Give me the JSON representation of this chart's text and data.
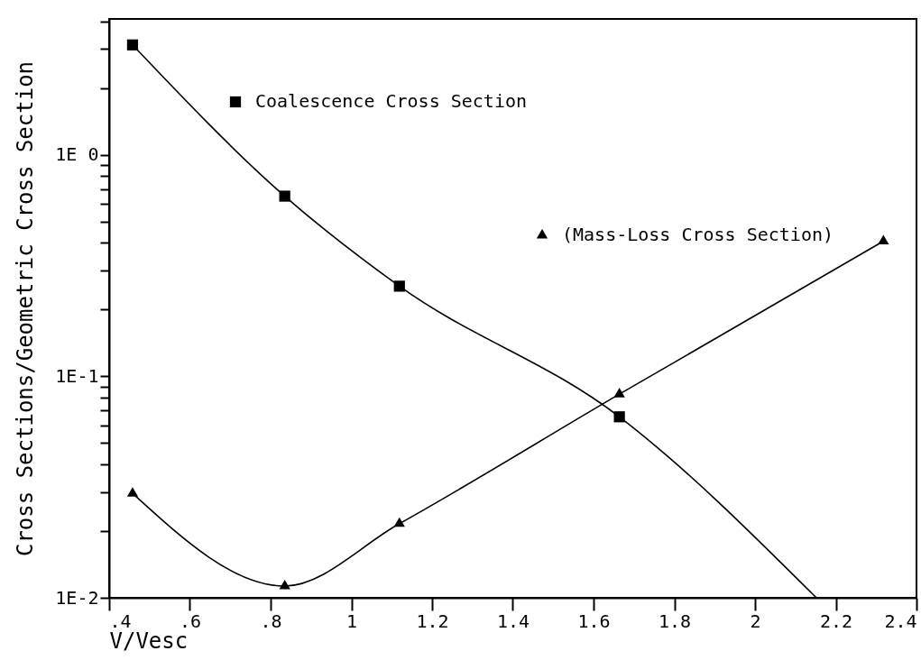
{
  "chart_data": {
    "type": "line",
    "xlabel": "V/Vesc",
    "ylabel": "Cross Sections/Geometric Cross Section",
    "log": "y",
    "grid": false,
    "legend": "top",
    "xlim": [
      0.4,
      2.4
    ],
    "xticks": [
      {
        "value": 0.4,
        "label": ".4"
      },
      {
        "value": 0.6,
        "label": ".6"
      },
      {
        "value": 0.8,
        "label": ".8"
      },
      1,
      1.2,
      1.4,
      1.6,
      1.8,
      2,
      2.2,
      2.4
    ],
    "ylim": [
      0.01,
      4.1
    ],
    "yticks": [
      {
        "value": 0.01,
        "label": "1E-2"
      },
      {
        "value": 0.02,
        "label": null
      },
      {
        "value": 0.03,
        "label": null
      },
      {
        "value": 0.04,
        "label": null
      },
      {
        "value": 0.05,
        "label": null
      },
      {
        "value": 0.06,
        "label": null
      },
      {
        "value": 0.07,
        "label": null
      },
      {
        "value": 0.08,
        "label": null
      },
      {
        "value": 0.09,
        "label": null
      },
      {
        "value": 0.1,
        "label": "1E-1"
      },
      {
        "value": 0.2,
        "label": null
      },
      {
        "value": 0.3,
        "label": null
      },
      {
        "value": 0.4,
        "label": null
      },
      {
        "value": 0.5,
        "label": null
      },
      {
        "value": 0.6,
        "label": null
      },
      {
        "value": 0.7,
        "label": null
      },
      {
        "value": 0.8,
        "label": null
      },
      {
        "value": 0.9,
        "label": null
      },
      {
        "value": 1,
        "label": "1E 0"
      },
      {
        "value": 2,
        "label": null
      },
      {
        "value": 3,
        "label": null
      },
      {
        "value": 4,
        "label": null
      }
    ],
    "series": [
      {
        "marker": "none",
        "color": "#000000",
        "x": [
          0.458,
          0.835,
          1.119,
          1.664,
          2.152
        ],
        "values": [
          3.13,
          0.65,
          0.255,
          0.0656,
          0.01
        ]
      },
      {
        "marker": "none",
        "color": "#000000",
        "x": [
          0.458,
          0.835,
          1.119,
          1.664,
          2.318
        ],
        "values": [
          0.0296,
          0.0113,
          0.0216,
          0.083,
          0.407
        ]
      },
      {
        "type": "scatter",
        "name": "Coalescence Cross Section",
        "marker": "square",
        "color": "#000000",
        "x": [
          0.458,
          0.835,
          1.119,
          1.664
        ],
        "values": [
          3.13,
          0.65,
          0.255,
          0.0656
        ]
      },
      {
        "type": "scatter",
        "name": "(Mass-Loss Cross Section)",
        "marker": "triangle",
        "color": "#000000",
        "x": [
          0.458,
          0.835,
          1.119,
          1.664,
          2.318
        ],
        "values": [
          0.0296,
          0.0113,
          0.0216,
          0.083,
          0.407
        ]
      }
    ]
  }
}
